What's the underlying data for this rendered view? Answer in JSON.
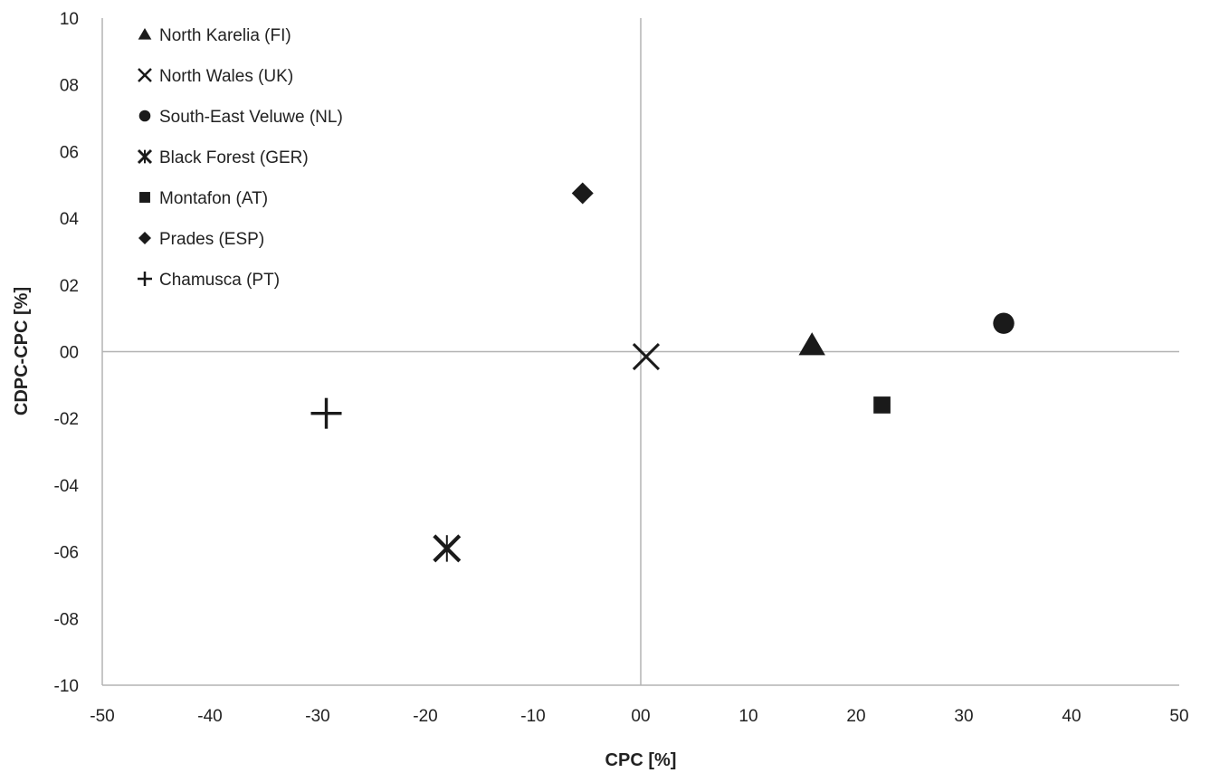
{
  "chart_data": {
    "type": "scatter",
    "xlabel": "CPC [%]",
    "ylabel": "CDPC-CPC [%]",
    "xlim": [
      -50,
      50
    ],
    "ylim": [
      -10,
      10
    ],
    "x_ticks": [
      -50,
      -40,
      -30,
      -20,
      -10,
      0,
      10,
      20,
      30,
      40,
      50
    ],
    "y_ticks": [
      10,
      8,
      6,
      4,
      2,
      0,
      -2,
      -4,
      -6,
      -8,
      -10
    ],
    "x_tick_labels": [
      "-50",
      "-40",
      "-30",
      "-20",
      "-10",
      "00",
      "10",
      "20",
      "30",
      "40",
      "50"
    ],
    "y_tick_labels": [
      "10",
      "08",
      "06",
      "04",
      "02",
      "00",
      "-02",
      "-04",
      "-06",
      "-08",
      "-10"
    ],
    "grid": false,
    "legend": "top-left",
    "series": [
      {
        "name": "North Karelia (FI)",
        "marker": "triangle",
        "x": 15.9,
        "y": 0.2
      },
      {
        "name": "North Wales (UK)",
        "marker": "x",
        "x": 0.5,
        "y": -0.15
      },
      {
        "name": "South-East Veluwe (NL)",
        "marker": "circle",
        "x": 33.7,
        "y": 0.85
      },
      {
        "name": "Black Forest (GER)",
        "marker": "asterisk",
        "x": -18.0,
        "y": -5.9
      },
      {
        "name": "Montafon (AT)",
        "marker": "square",
        "x": 22.4,
        "y": -1.6
      },
      {
        "name": "Prades (ESP)",
        "marker": "diamond",
        "x": -5.4,
        "y": 4.75
      },
      {
        "name": "Chamusca (PT)",
        "marker": "plus",
        "x": -29.2,
        "y": -1.85
      }
    ],
    "colors": {
      "marker": "#1a1a1a",
      "axis": "#b3b3b3",
      "text": "#222222"
    }
  }
}
